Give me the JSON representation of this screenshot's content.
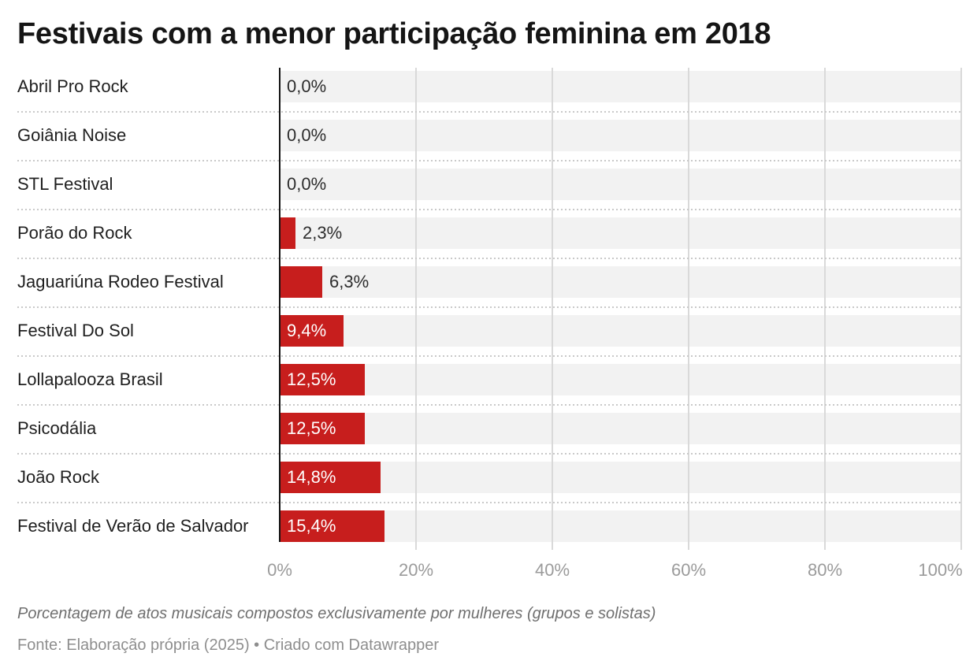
{
  "title": "Festivais com a menor participação feminina em 2018",
  "notes": {
    "description": "Porcentagem de atos musicais compostos exclusivamente por mulheres (grupos e solistas)",
    "source": "Fonte: Elaboração própria (2025) • Criado com Datawrapper"
  },
  "colors": {
    "bar": "#c71e1d",
    "strip": "#f2f2f2",
    "gridline": "#d9d9d9",
    "axis_line": "#141414",
    "row_label": "#1f1f1f",
    "value_label_outside": "#2d2d2d",
    "value_label_inside": "#ffffff",
    "tick_label": "#9b9b9b"
  },
  "chart_data": {
    "type": "bar",
    "orientation": "horizontal",
    "title": "Festivais com a menor participação feminina em 2018",
    "categories": [
      "Abril Pro Rock",
      "Goiânia Noise",
      "STL Festival",
      "Porão do Rock",
      "Jaguariúna Rodeo Festival",
      "Festival Do Sol",
      "Lollapalooza Brasil",
      "Psicodália",
      "João Rock",
      "Festival de Verão de Salvador"
    ],
    "values": [
      0.0,
      0.0,
      0.0,
      2.3,
      6.3,
      9.4,
      12.5,
      12.5,
      14.8,
      15.4
    ],
    "value_labels": [
      "0,0%",
      "0,0%",
      "0,0%",
      "2,3%",
      "6,3%",
      "9,4%",
      "12,5%",
      "12,5%",
      "14,8%",
      "15,4%"
    ],
    "xlabel": "",
    "ylabel": "",
    "xlim": [
      0,
      100
    ],
    "x_ticks": [
      0,
      20,
      40,
      60,
      80,
      100
    ],
    "x_tick_labels": [
      "0%",
      "20%",
      "40%",
      "60%",
      "80%",
      "100%"
    ],
    "grid": "vertical-gridlines-on, dotted-row-separators",
    "legend": "none",
    "bar_color": "#c71e1d"
  }
}
